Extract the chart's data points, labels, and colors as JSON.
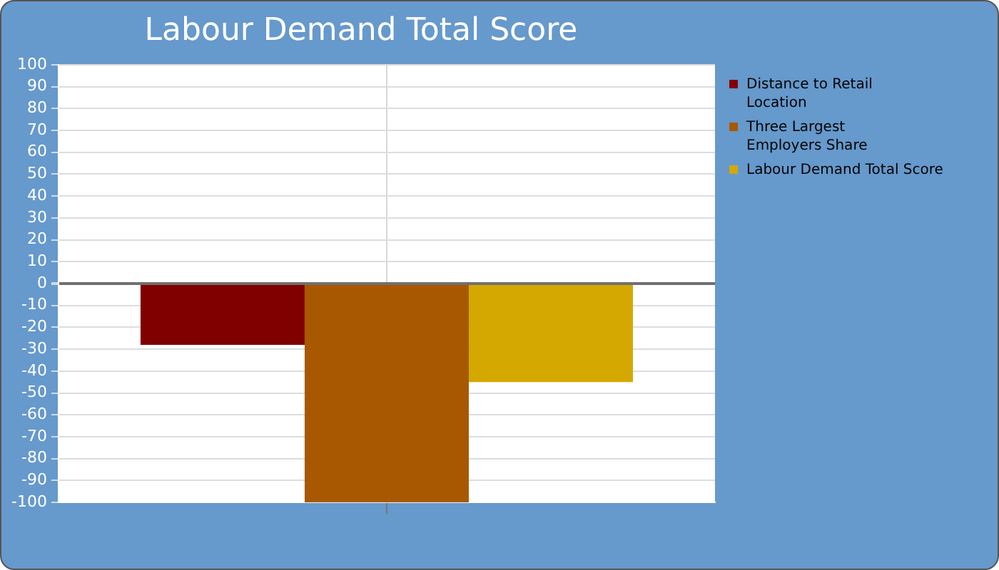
{
  "chart_data": {
    "type": "bar",
    "title": "Labour Demand Total Score",
    "categories": [
      null
    ],
    "series": [
      {
        "name": "Distance to Retail Location",
        "color": "#800000",
        "values": [
          -28
        ]
      },
      {
        "name": "Three Largest Employers Share",
        "color": "#a85800",
        "values": [
          -100
        ]
      },
      {
        "name": "Labour Demand Total Score",
        "color": "#d4a800",
        "values": [
          -45
        ]
      }
    ],
    "ylim": [
      -100,
      100
    ],
    "yticks": [
      -100,
      -90,
      -80,
      -70,
      -60,
      -50,
      -40,
      -30,
      -20,
      -10,
      0,
      10,
      20,
      30,
      40,
      50,
      60,
      70,
      80,
      90,
      100
    ],
    "grid": true,
    "legend": "right"
  }
}
